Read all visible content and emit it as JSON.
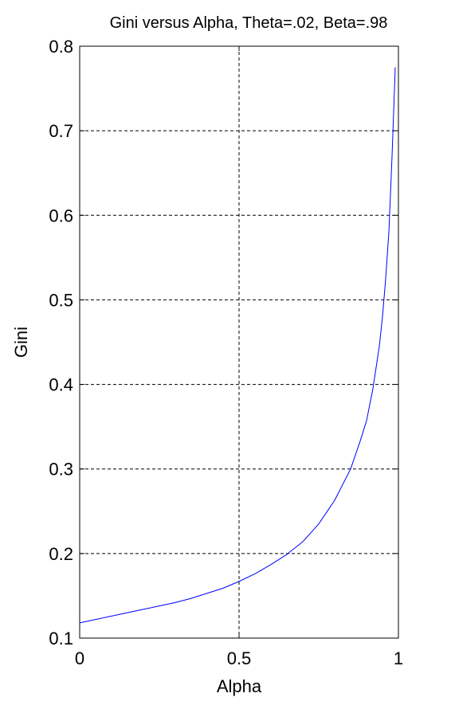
{
  "chart_data": {
    "type": "line",
    "title": "Gini versus Alpha, Theta=.02, Beta=.98",
    "xlabel": "Alpha",
    "ylabel": "Gini",
    "xlim": [
      0,
      1
    ],
    "ylim": [
      0.1,
      0.8
    ],
    "xticks": [
      0,
      0.5,
      1
    ],
    "xtick_labels": [
      "0",
      "0.5",
      "1"
    ],
    "yticks": [
      0.1,
      0.2,
      0.3,
      0.4,
      0.5,
      0.6,
      0.7,
      0.8
    ],
    "ytick_labels": [
      "0.1",
      "0.2",
      "0.3",
      "0.4",
      "0.5",
      "0.6",
      "0.7",
      "0.8"
    ],
    "grid": true,
    "legend": "none",
    "series": [
      {
        "color": "#0000ff",
        "x": [
          0.0,
          0.05,
          0.1,
          0.15,
          0.2,
          0.25,
          0.3,
          0.35,
          0.4,
          0.45,
          0.5,
          0.55,
          0.6,
          0.65,
          0.7,
          0.75,
          0.8,
          0.85,
          0.88,
          0.9,
          0.92,
          0.94,
          0.95,
          0.96,
          0.97,
          0.98,
          0.99
        ],
        "y": [
          0.118,
          0.122,
          0.126,
          0.13,
          0.134,
          0.138,
          0.142,
          0.147,
          0.153,
          0.159,
          0.167,
          0.176,
          0.187,
          0.199,
          0.214,
          0.235,
          0.263,
          0.3,
          0.333,
          0.357,
          0.395,
          0.445,
          0.48,
          0.525,
          0.58,
          0.67,
          0.775
        ]
      }
    ]
  }
}
